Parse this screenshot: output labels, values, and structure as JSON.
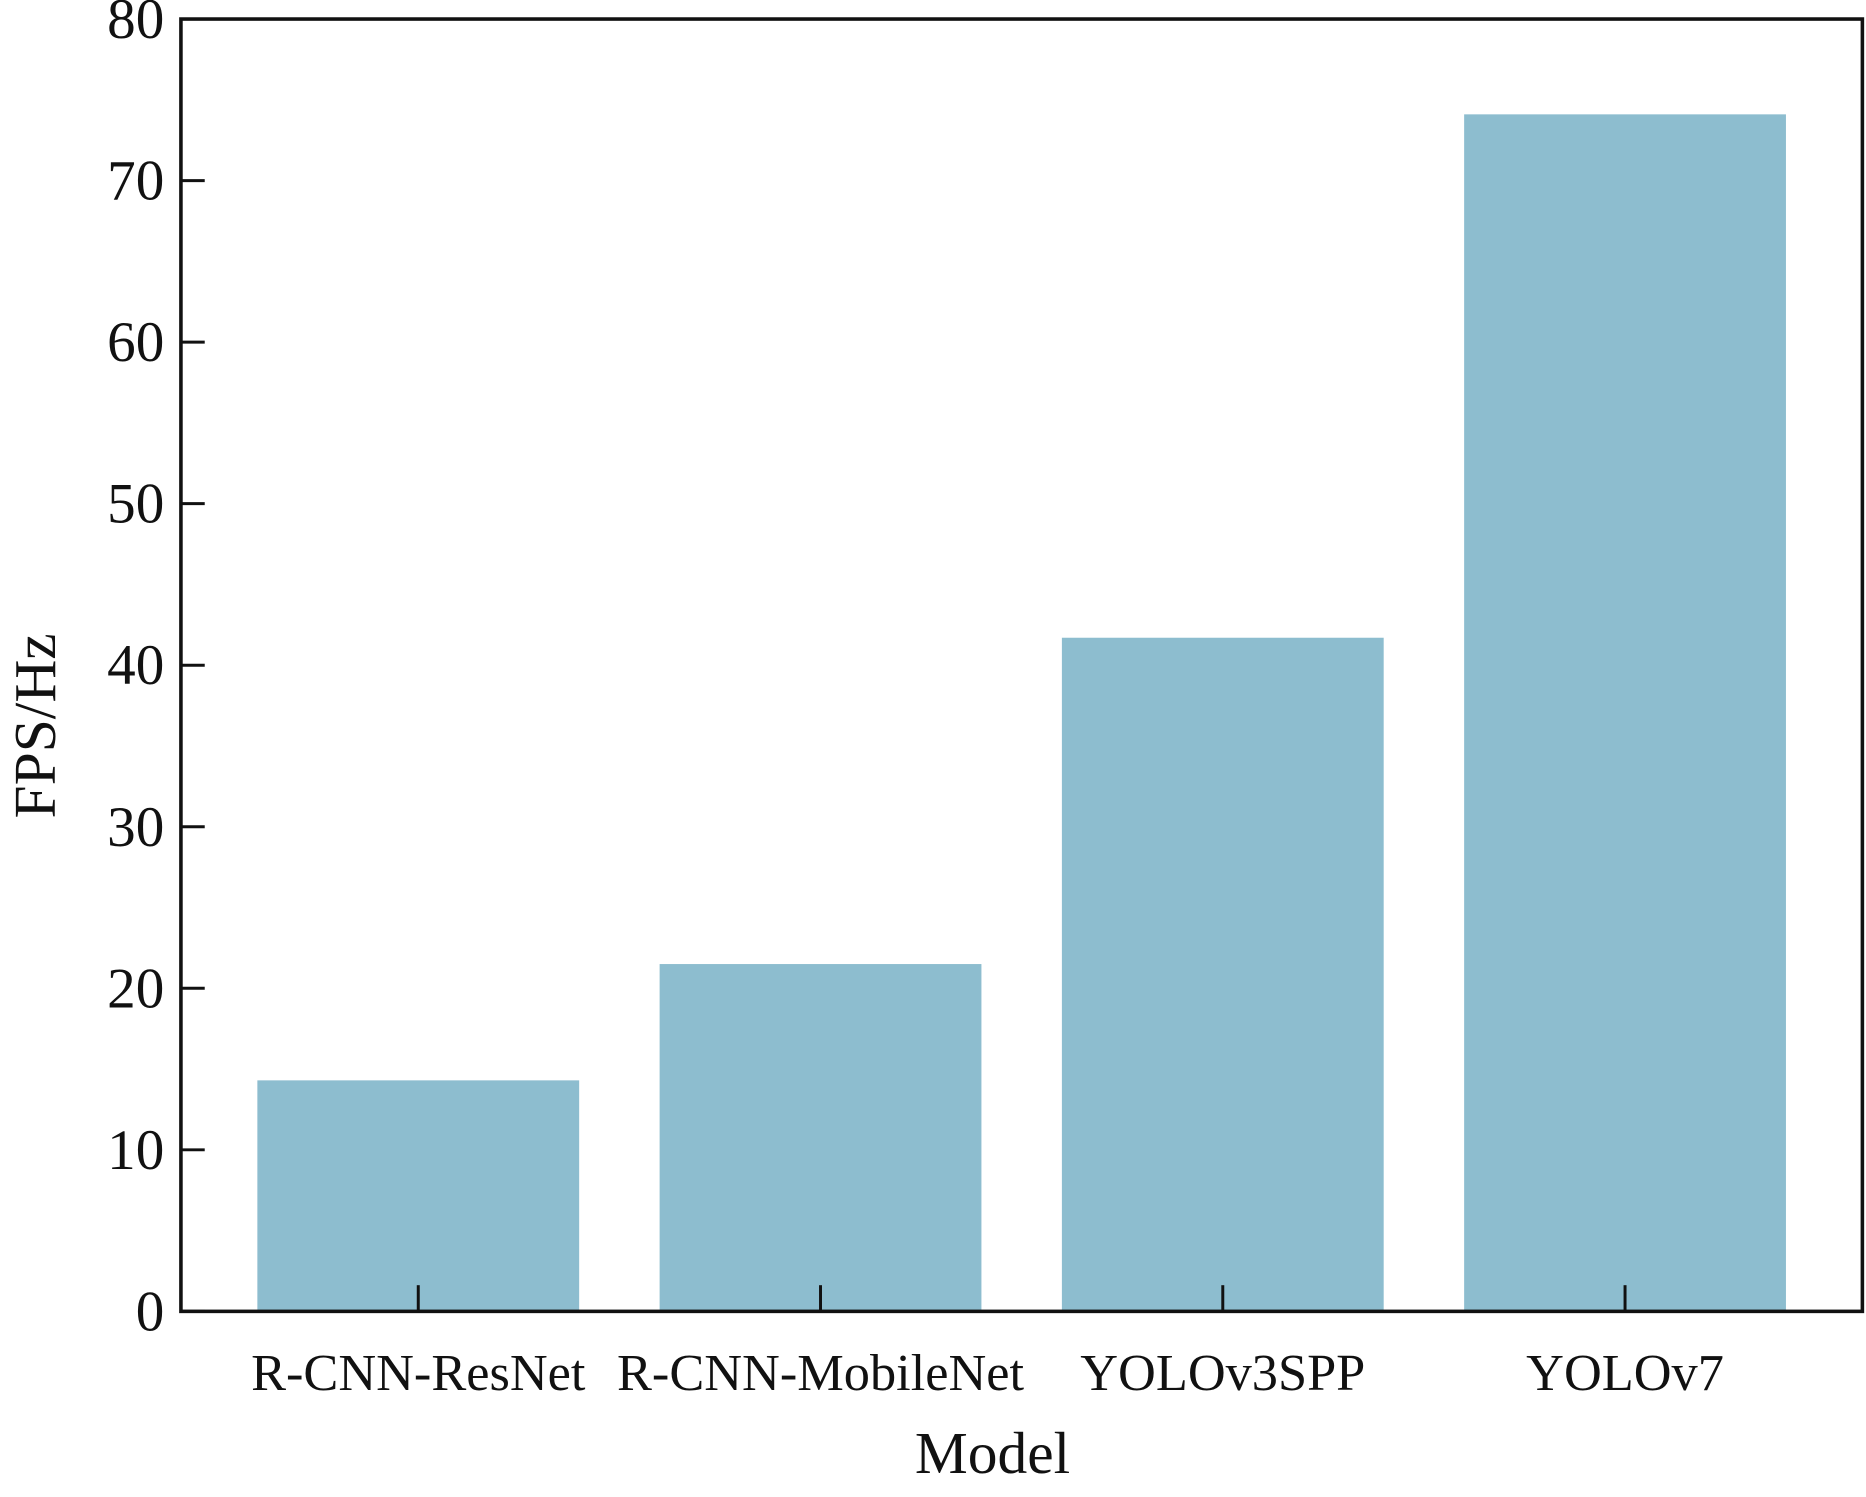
{
  "chart_data": {
    "type": "bar",
    "x_label": "Model",
    "y_label": "FPS/Hz",
    "categories": [
      "R-CNN-ResNet",
      "R-CNN-MobileNet",
      "YOLOv3SPP",
      "YOLOv7"
    ],
    "values": [
      14.3,
      21.5,
      41.7,
      74.1
    ],
    "color": "#8dbdcf",
    "ylim": [
      0,
      80
    ],
    "yticks": [
      0,
      10,
      20,
      30,
      40,
      50,
      60,
      70,
      80
    ]
  }
}
